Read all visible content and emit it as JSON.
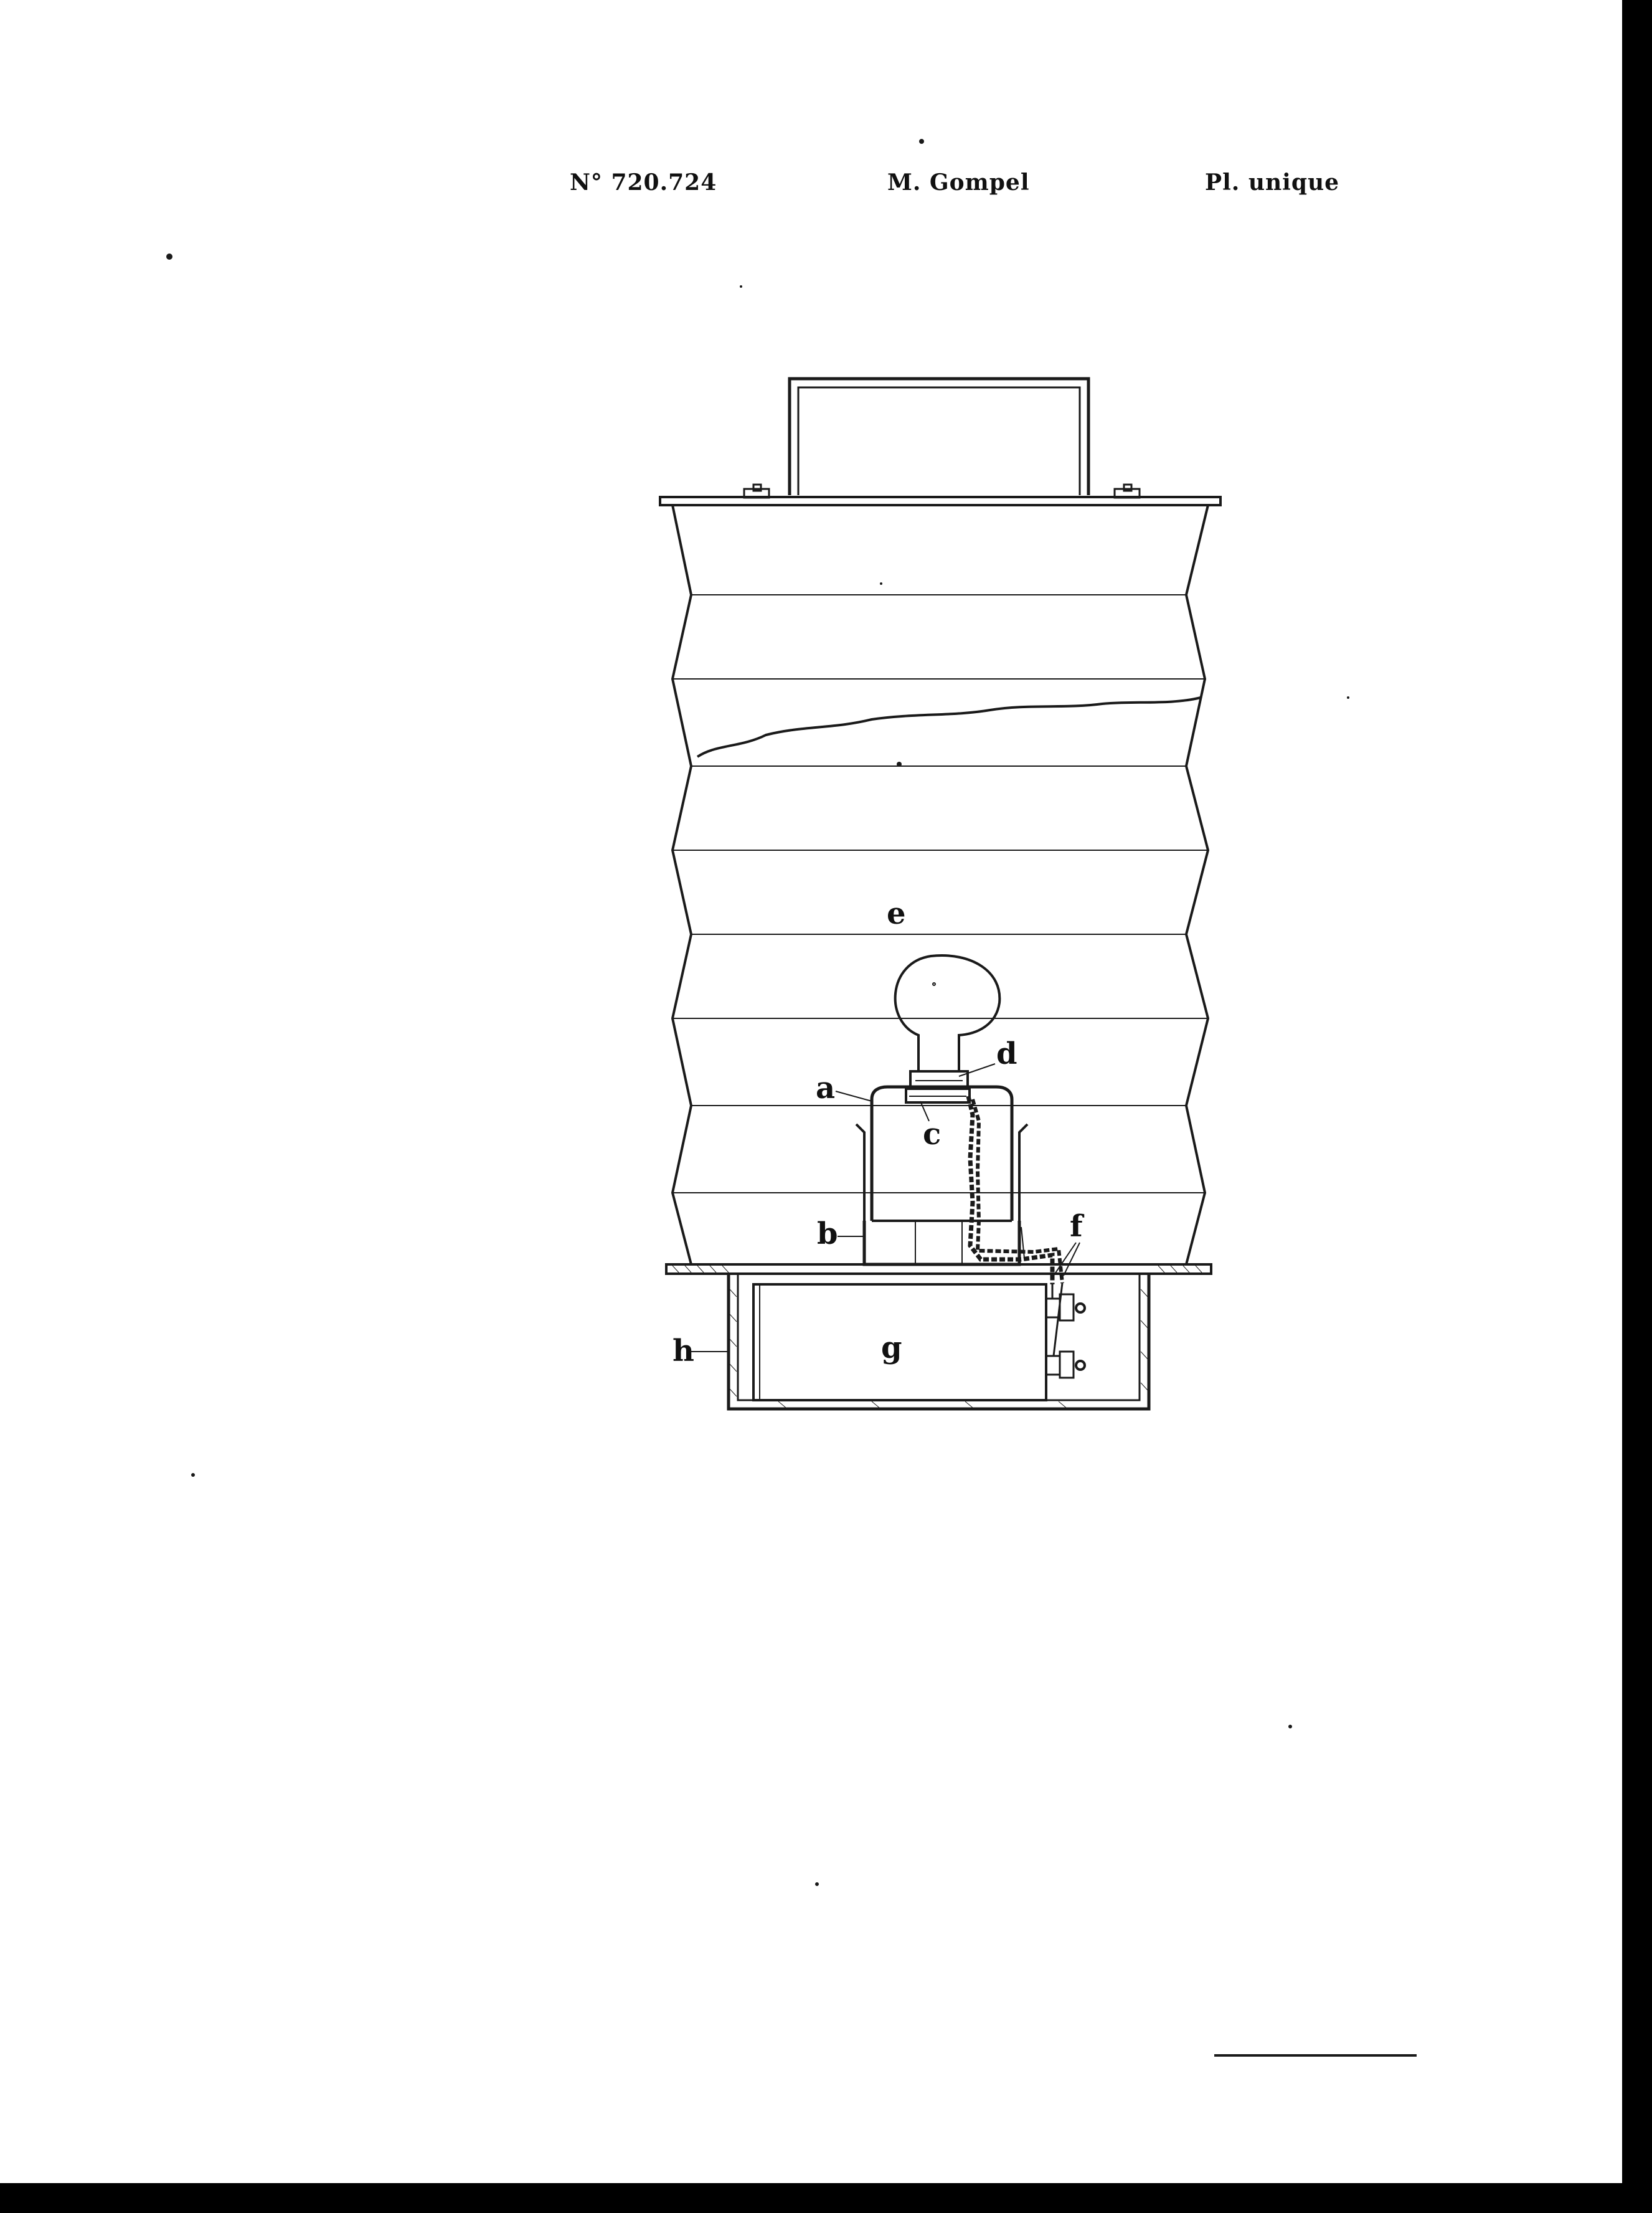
{
  "header": {
    "patent_number": "N° 720.724",
    "inventor": "M. Gompel",
    "plate": "Pl. unique"
  },
  "labels": {
    "a": "a",
    "b": "b",
    "c": "c",
    "d": "d",
    "e": "e",
    "f": "f",
    "g": "g",
    "h": "h"
  },
  "colors": {
    "ink": "#1a1a1a",
    "paper": "#ffffff",
    "border": "#000000"
  }
}
